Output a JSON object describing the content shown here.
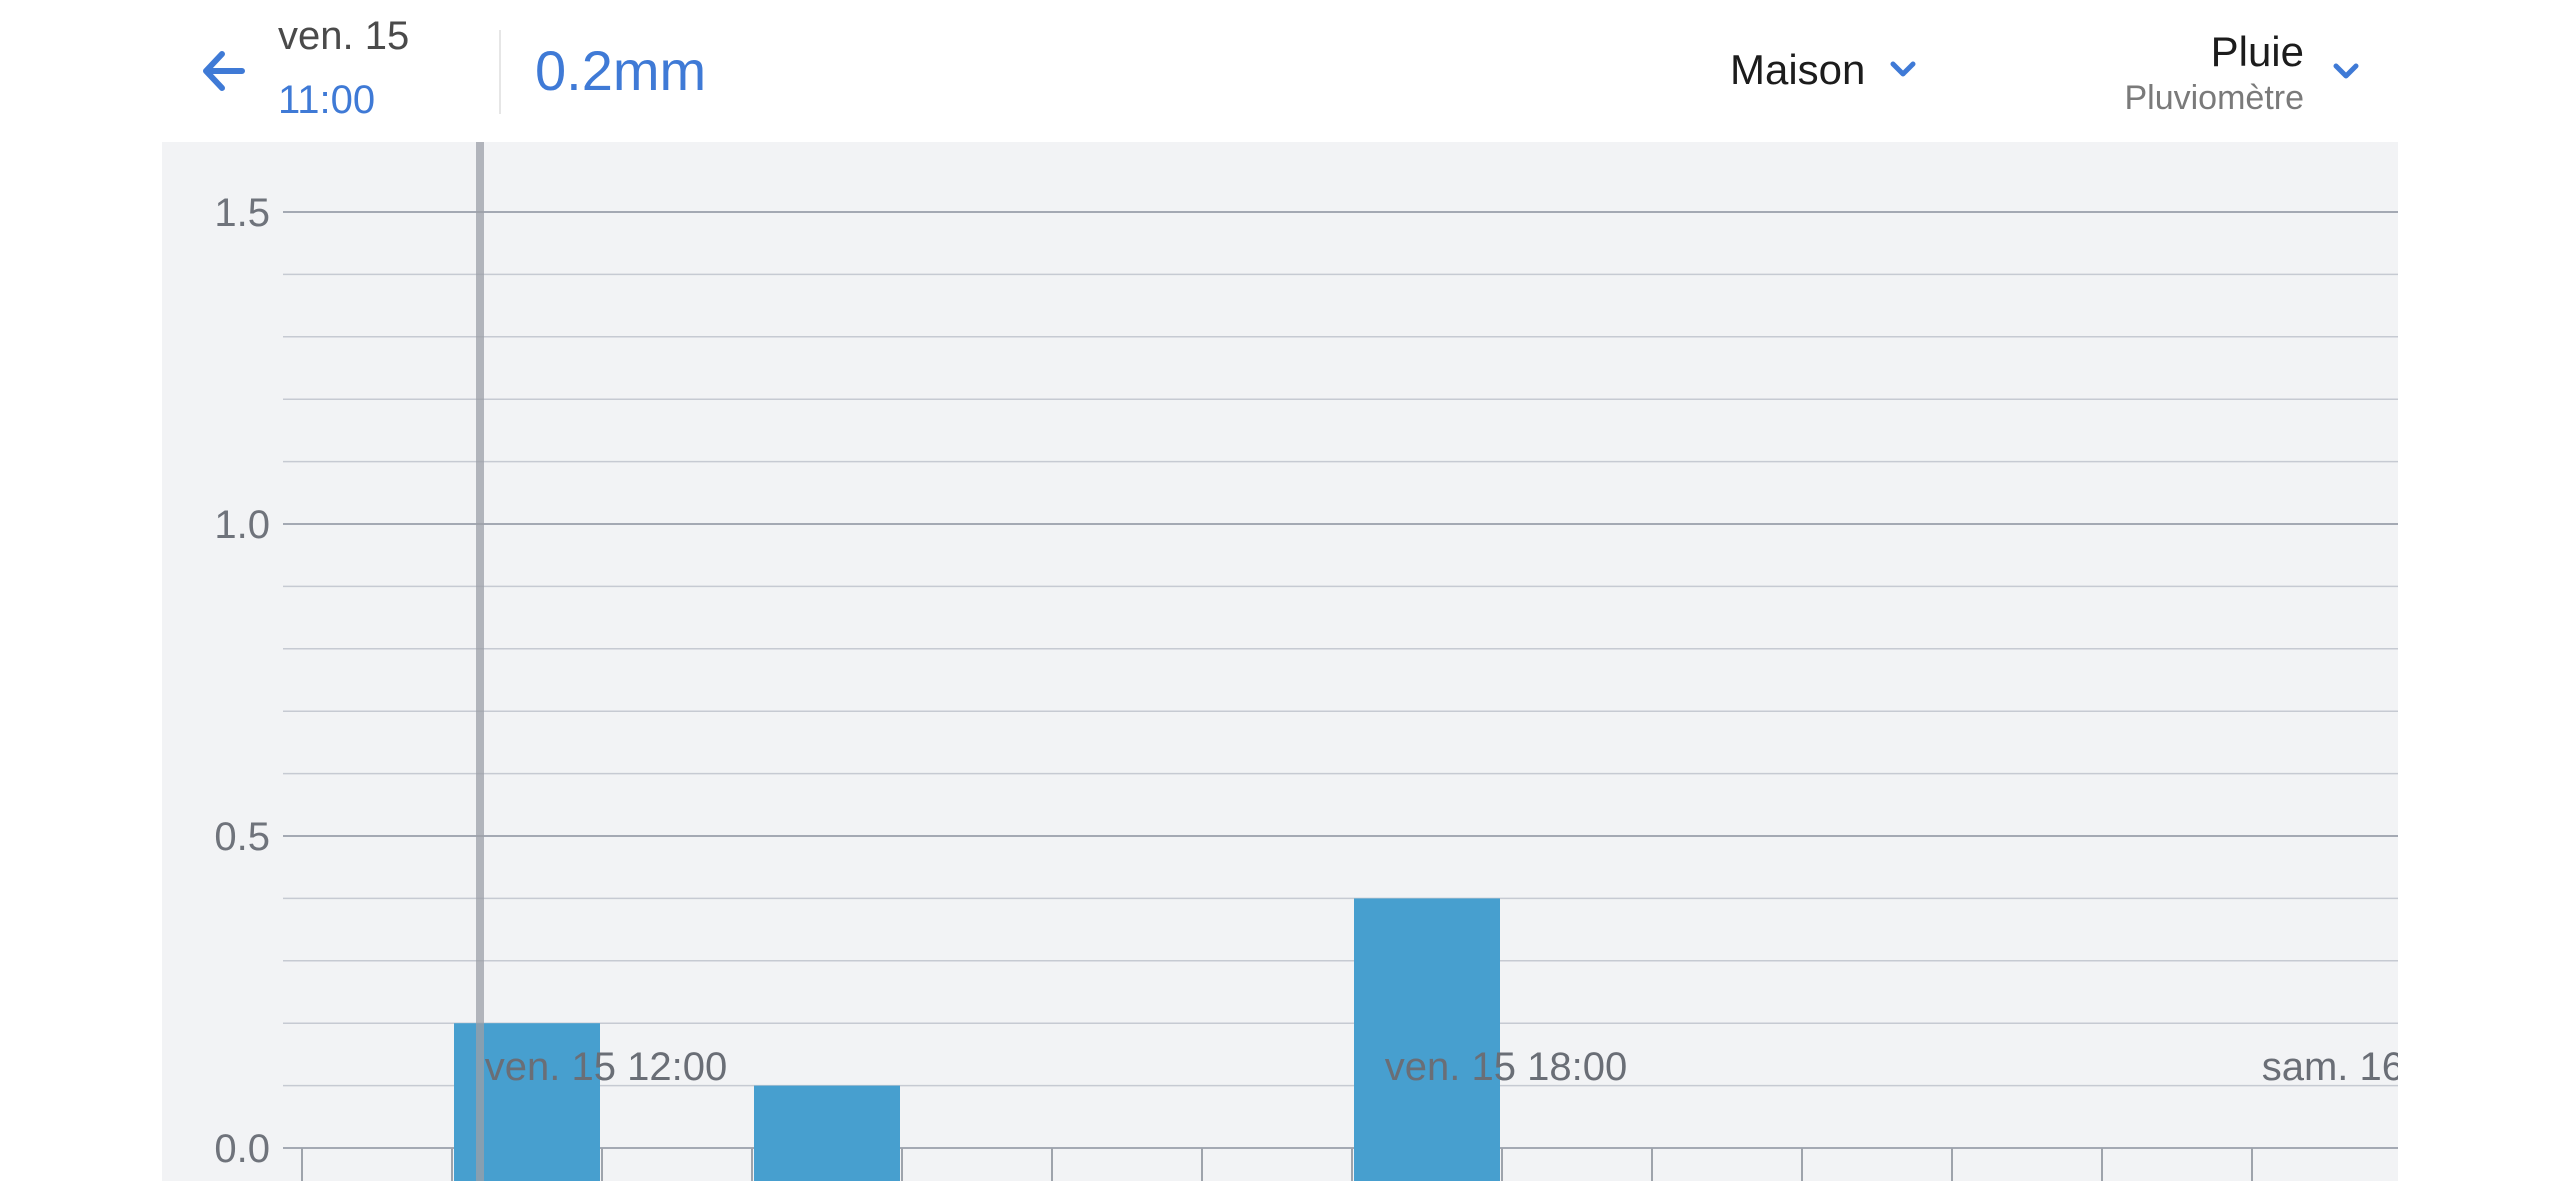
{
  "header": {
    "back_icon": "arrow-left-icon",
    "date": "ven. 15",
    "time": "11:00",
    "value": "0.2mm",
    "station": {
      "label": "Maison",
      "icon": "chevron-down-icon"
    },
    "sensor": {
      "name": "Pluie",
      "subtitle": "Pluviomètre",
      "icon": "chevron-down-icon"
    },
    "accent_color": "#3f7ad6"
  },
  "chart_data": {
    "type": "bar",
    "title": "",
    "xlabel": "",
    "ylabel": "",
    "ylim": [
      0,
      1.5
    ],
    "y_ticks": [
      "0.0",
      "0.5",
      "1.0",
      "1.5"
    ],
    "x_tick_labels": [
      "ven. 15 12:00",
      "ven. 15 18:00",
      "sam. 16"
    ],
    "x_start": "ven. 15 10:00",
    "bucket_hours": 1,
    "x_end": "sam. 16 00:00",
    "bars": [
      {
        "x": "ven. 15 11:00",
        "value": 0.2
      },
      {
        "x": "ven. 15 13:00",
        "value": 0.1
      },
      {
        "x": "ven. 15 17:00",
        "value": 0.4
      }
    ],
    "cursor_x": "ven. 15 11:00",
    "grid": true,
    "bar_color": "#479fcf"
  }
}
